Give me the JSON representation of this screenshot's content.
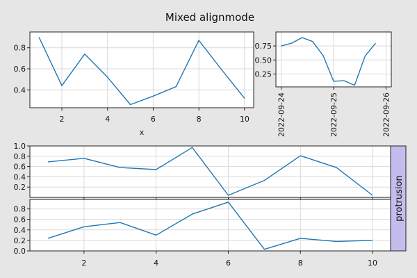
{
  "figure": {
    "title": "Mixed alignmode",
    "background": "#e6e6e6",
    "line_color": "#1f77b4",
    "facet_color": "#c3bdee"
  },
  "chart_data": [
    {
      "id": "top-left",
      "type": "line",
      "xlabel": "x",
      "ylabel": "",
      "xlim": [
        0.6,
        10.4
      ],
      "ylim": [
        0.23,
        0.95
      ],
      "xticks": [
        2,
        4,
        6,
        8,
        10
      ],
      "yticks": [
        0.4,
        0.6,
        0.8
      ],
      "ytick_labels": [
        "0.4",
        "0.6",
        "0.8"
      ],
      "grid": true,
      "x": [
        1,
        2,
        3,
        4,
        5,
        6,
        7,
        8,
        9,
        10
      ],
      "series": [
        {
          "values": [
            0.9,
            0.44,
            0.74,
            0.52,
            0.26,
            0.34,
            0.43,
            0.87,
            0.59,
            0.32
          ]
        }
      ]
    },
    {
      "id": "top-right",
      "type": "line",
      "xlabel": "",
      "ylabel": "",
      "xlim": [
        -0.1,
        2.1
      ],
      "ylim": [
        0.02,
        1.0
      ],
      "xticks": [
        0,
        1,
        2
      ],
      "xtick_labels": [
        "2022-09-24",
        "2022-09-25",
        "2022-09-26"
      ],
      "yticks": [
        0.25,
        0.5,
        0.75
      ],
      "ytick_labels": [
        "0.25",
        "0.50",
        "0.75"
      ],
      "grid": true,
      "x": [
        0,
        0.2,
        0.4,
        0.6,
        0.8,
        1.0,
        1.2,
        1.4,
        1.6,
        1.8
      ],
      "series": [
        {
          "values": [
            0.75,
            0.8,
            0.9,
            0.83,
            0.58,
            0.12,
            0.13,
            0.05,
            0.57,
            0.8
          ]
        }
      ]
    },
    {
      "id": "middle",
      "type": "line",
      "xlabel": "",
      "ylabel": "",
      "xlim": [
        0.5,
        10.5
      ],
      "ylim": [
        0.0,
        1.0
      ],
      "xticks": [
        2,
        4,
        6,
        8,
        10
      ],
      "yticks": [
        0.2,
        0.4,
        0.6,
        0.8,
        1.0
      ],
      "ytick_labels": [
        "0.2",
        "0.4",
        "0.6",
        "0.8",
        "1.0"
      ],
      "grid": true,
      "show_xticklabels": false,
      "x": [
        1,
        2,
        3,
        4,
        5,
        6,
        7,
        8,
        9,
        10
      ],
      "series": [
        {
          "values": [
            0.69,
            0.76,
            0.58,
            0.54,
            0.97,
            0.04,
            0.33,
            0.81,
            0.58,
            0.04
          ]
        }
      ]
    },
    {
      "id": "bottom",
      "type": "line",
      "xlabel": "",
      "ylabel": "",
      "xlim": [
        0.5,
        10.5
      ],
      "ylim": [
        0.0,
        0.98
      ],
      "xticks": [
        2,
        4,
        6,
        8,
        10
      ],
      "yticks": [
        0.0,
        0.2,
        0.4,
        0.6,
        0.8
      ],
      "ytick_labels": [
        "0.0",
        "0.2",
        "0.4",
        "0.6",
        "0.8"
      ],
      "grid": true,
      "x": [
        1,
        2,
        3,
        4,
        5,
        6,
        7,
        8,
        9,
        10
      ],
      "series": [
        {
          "values": [
            0.24,
            0.46,
            0.54,
            0.3,
            0.7,
            0.93,
            0.03,
            0.24,
            0.18,
            0.2
          ]
        }
      ]
    }
  ],
  "facet": {
    "label": "protrusion"
  }
}
